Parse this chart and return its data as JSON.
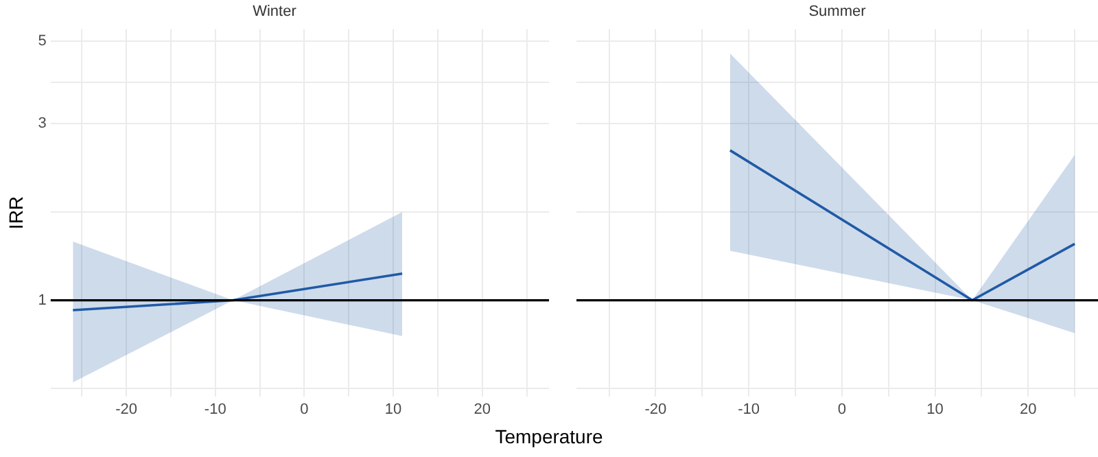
{
  "chart_data": [
    {
      "type": "line",
      "title": "Winter",
      "xlabel": "Temperature",
      "ylabel": "IRR",
      "log": "y",
      "grid": true,
      "legend": false,
      "marker": "none",
      "line_style": "solid",
      "xlim": [
        -28.5,
        27.5
      ],
      "xticks": [
        {
          "value": -25,
          "label": null
        },
        -20,
        {
          "value": -15,
          "label": null
        },
        -10,
        {
          "value": -5,
          "label": null
        },
        0,
        {
          "value": 5,
          "label": null
        },
        10,
        {
          "value": 15,
          "label": null
        },
        20,
        {
          "value": 25,
          "label": null
        }
      ],
      "ylim": [
        0.55,
        5.4
      ],
      "yticks": [
        {
          "value": 0.577,
          "label": null
        },
        1,
        {
          "value": 1.73,
          "label": null
        },
        3,
        {
          "value": 3.87,
          "label": null
        },
        5
      ],
      "series": [
        {
          "color": "#1f5aa6",
          "x": [
            -26,
            -8,
            11
          ],
          "values": [
            0.94,
            1.0,
            1.18
          ],
          "lower": [
            0.6,
            1.0,
            0.8
          ],
          "upper": [
            1.44,
            1.0,
            1.73
          ]
        }
      ],
      "ref_lines": [
        {
          "axis": "y",
          "value": 1,
          "color": "#000000"
        }
      ]
    },
    {
      "type": "line",
      "title": "Summer",
      "log": "y",
      "grid": true,
      "legend": false,
      "marker": "none",
      "line_style": "solid",
      "tick_labels": "x",
      "xlim": [
        -28.5,
        27.5
      ],
      "xticks": [
        {
          "value": -25,
          "label": null
        },
        -20,
        {
          "value": -15,
          "label": null
        },
        -10,
        {
          "value": -5,
          "label": null
        },
        0,
        {
          "value": 5,
          "label": null
        },
        10,
        {
          "value": 15,
          "label": null
        },
        20,
        {
          "value": 25,
          "label": null
        }
      ],
      "ylim": [
        0.55,
        5.4
      ],
      "yticks": [
        {
          "value": 0.577,
          "label": null
        },
        1,
        {
          "value": 1.73,
          "label": null
        },
        3,
        {
          "value": 3.87,
          "label": null
        },
        5
      ],
      "series": [
        {
          "color": "#1f5aa6",
          "x": [
            -12,
            14,
            25
          ],
          "values": [
            2.54,
            1.0,
            1.42
          ],
          "lower": [
            1.36,
            1.0,
            0.815
          ],
          "upper": [
            4.64,
            1.0,
            2.47
          ]
        }
      ],
      "ref_lines": [
        {
          "axis": "y",
          "value": 1,
          "color": "#000000"
        }
      ]
    }
  ]
}
